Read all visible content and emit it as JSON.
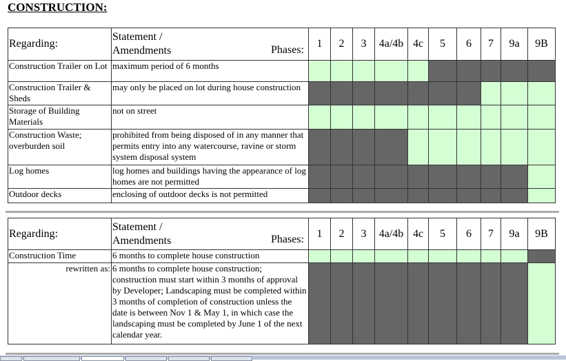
{
  "title": "CONSTRUCTION:",
  "header": {
    "regarding": "Regarding:",
    "statement": "Statement /",
    "amendments": "Amendments",
    "phases_label": "Phases:",
    "phases": [
      "1",
      "2",
      "3",
      "4a/4b",
      "4c",
      "5",
      "6",
      "7",
      "9a",
      "9B"
    ]
  },
  "colors": {
    "allowed": "#d4ffd4",
    "not_applicable": "#666666"
  },
  "table1": [
    {
      "regarding": "Construction Trailer on Lot",
      "statement": "maximum period of 6 months",
      "cells": [
        1,
        1,
        1,
        1,
        1,
        0,
        0,
        0,
        0,
        0
      ]
    },
    {
      "regarding": "Construction Trailer & Sheds",
      "statement": "may only be placed on lot during house construction",
      "cells": [
        0,
        0,
        0,
        0,
        0,
        0,
        0,
        1,
        1,
        1
      ]
    },
    {
      "regarding": "Storage of Building Materials",
      "statement": "not on street",
      "cells": [
        1,
        1,
        1,
        1,
        1,
        1,
        1,
        1,
        1,
        1
      ]
    },
    {
      "regarding": "Construction Waste; overburden soil",
      "statement": "prohibited from being disposed of in any manner that permits entry into any watercourse, ravine or storm system disposal system",
      "cells": [
        0,
        0,
        0,
        0,
        1,
        1,
        1,
        1,
        1,
        1
      ]
    },
    {
      "regarding": "Log homes",
      "statement": "log homes and buildings having the appearance of log homes are not permitted",
      "cells": [
        0,
        0,
        0,
        0,
        0,
        0,
        0,
        0,
        0,
        1
      ]
    },
    {
      "regarding": "Outdoor decks",
      "statement": "enclosing of outdoor decks is not permitted",
      "cells": [
        0,
        0,
        0,
        0,
        0,
        0,
        0,
        0,
        0,
        1
      ]
    }
  ],
  "table2": [
    {
      "regarding": "Construction Time",
      "statement": "6 months to complete house construction",
      "cells": [
        1,
        1,
        1,
        1,
        1,
        1,
        1,
        1,
        1,
        0
      ]
    },
    {
      "regarding": "rewritten as:",
      "statement": "6 months to complete house construction; construction must start within 3 months of approval by Developer; Landscaping must be completed within 3 months of completion of construction unless the date is between Nov 1 & May 1, in which case the landscaping must be completed by June 1 of the next calendar year.",
      "cells": [
        0,
        0,
        0,
        0,
        0,
        0,
        0,
        0,
        0,
        1
      ]
    }
  ]
}
